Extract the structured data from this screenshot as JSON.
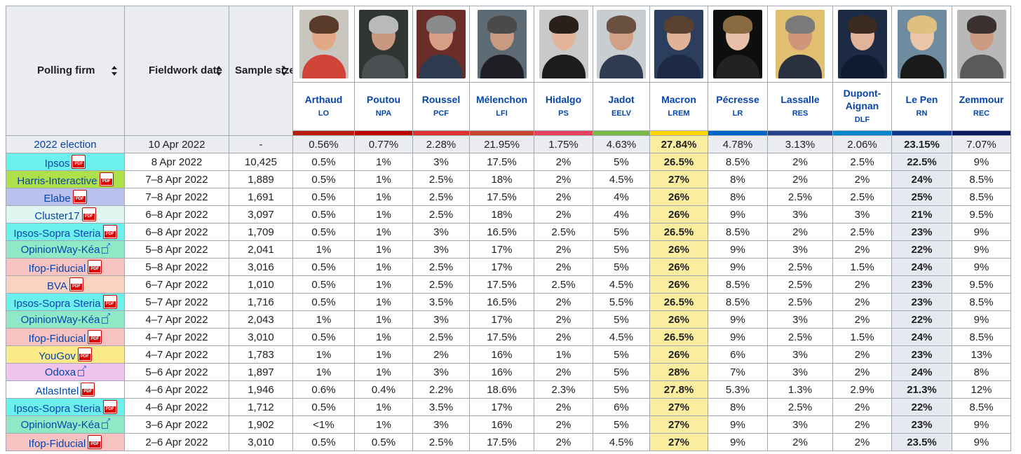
{
  "headers": {
    "firm": "Polling firm",
    "date": "Fieldwork date",
    "size": "Sample size"
  },
  "candidates": [
    {
      "name": "Arthaud",
      "party": "LO",
      "color": "#bb1e10",
      "photo": "photo-arthaud"
    },
    {
      "name": "Poutou",
      "party": "NPA",
      "color": "#bb0000",
      "photo": "photo-poutou"
    },
    {
      "name": "Roussel",
      "party": "PCF",
      "color": "#dd3333",
      "photo": "photo-roussel"
    },
    {
      "name": "Mélenchon",
      "party": "LFI",
      "color": "#c9462c",
      "photo": "photo-melenchon"
    },
    {
      "name": "Hidalgo",
      "party": "PS",
      "color": "#e4405f",
      "photo": "photo-hidalgo"
    },
    {
      "name": "Jadot",
      "party": "EELV",
      "color": "#78b943",
      "photo": "photo-jadot"
    },
    {
      "name": "Macron",
      "party": "LREM",
      "color": "#ffd600",
      "photo": "photo-macron"
    },
    {
      "name": "Pécresse",
      "party": "LR",
      "color": "#0066cc",
      "photo": "photo-pecresse"
    },
    {
      "name": "Lassalle",
      "party": "RES",
      "color": "#26428b",
      "photo": "photo-lassalle"
    },
    {
      "name": "Dupont-Aignan",
      "party": "DLF",
      "color": "#0087cd",
      "photo": "photo-dupont-aignan"
    },
    {
      "name": "Le Pen",
      "party": "RN",
      "color": "#0d378a",
      "photo": "photo-le-pen"
    },
    {
      "name": "Zemmour",
      "party": "REC",
      "color": "#0c1a62",
      "photo": "photo-zemmour"
    }
  ],
  "election": {
    "firm": "2022 election",
    "date": "10 Apr 2022",
    "size": "-",
    "values": [
      "0.56%",
      "0.77%",
      "2.28%",
      "21.95%",
      "1.75%",
      "4.63%",
      "27.84%",
      "4.78%",
      "3.13%",
      "2.06%",
      "23.15%",
      "7.07%"
    ]
  },
  "rows": [
    {
      "firm": "Ipsos",
      "color": "#6cf0ee",
      "icon": "pdf-icon",
      "date": "8 Apr 2022",
      "size": "10,425",
      "values": [
        "0.5%",
        "1%",
        "3%",
        "17.5%",
        "2%",
        "5%",
        "26.5%",
        "8.5%",
        "2%",
        "2.5%",
        "22.5%",
        "9%"
      ]
    },
    {
      "firm": "Harris-Interactive",
      "color": "#aee04c",
      "icon": "pdf-icon",
      "date": "7–8 Apr 2022",
      "size": "1,889",
      "values": [
        "0.5%",
        "1%",
        "2.5%",
        "18%",
        "2%",
        "4.5%",
        "27%",
        "8%",
        "2%",
        "2%",
        "24%",
        "8.5%"
      ]
    },
    {
      "firm": "Elabe",
      "color": "#b9c1ec",
      "icon": "pdf-icon",
      "date": "7–8 Apr 2022",
      "size": "1,691",
      "values": [
        "0.5%",
        "1%",
        "2.5%",
        "17.5%",
        "2%",
        "4%",
        "26%",
        "8%",
        "2.5%",
        "2.5%",
        "25%",
        "8.5%"
      ]
    },
    {
      "firm": "Cluster17",
      "color": "#e0f7f1",
      "icon": "pdf-icon",
      "date": "6–8 Apr 2022",
      "size": "3,097",
      "values": [
        "0.5%",
        "1%",
        "2.5%",
        "18%",
        "2%",
        "4%",
        "26%",
        "9%",
        "3%",
        "3%",
        "21%",
        "9.5%"
      ]
    },
    {
      "firm": "Ipsos-Sopra Steria",
      "color": "#6cf0ee",
      "icon": "pdf-icon",
      "date": "6–8 Apr 2022",
      "size": "1,709",
      "values": [
        "0.5%",
        "1%",
        "3%",
        "16.5%",
        "2.5%",
        "5%",
        "26.5%",
        "8.5%",
        "2%",
        "2.5%",
        "23%",
        "9%"
      ]
    },
    {
      "firm": "OpinionWay-Kéa",
      "color": "#8fe9c6",
      "icon": "external-link-icon",
      "date": "5–8 Apr 2022",
      "size": "2,041",
      "values": [
        "1%",
        "1%",
        "3%",
        "17%",
        "2%",
        "5%",
        "26%",
        "9%",
        "3%",
        "2%",
        "22%",
        "9%"
      ]
    },
    {
      "firm": "Ifop-Fiducial",
      "color": "#f7c3c0",
      "icon": "pdf-icon",
      "date": "5–8 Apr 2022",
      "size": "3,016",
      "values": [
        "0.5%",
        "1%",
        "2.5%",
        "17%",
        "2%",
        "5%",
        "26%",
        "9%",
        "2.5%",
        "1.5%",
        "24%",
        "9%"
      ]
    },
    {
      "firm": "BVA",
      "color": "#fbd2c1",
      "icon": "pdf-icon",
      "date": "6–7 Apr 2022",
      "size": "1,010",
      "values": [
        "0.5%",
        "1%",
        "2.5%",
        "17.5%",
        "2.5%",
        "4.5%",
        "26%",
        "8.5%",
        "2.5%",
        "2%",
        "23%",
        "9.5%"
      ]
    },
    {
      "firm": "Ipsos-Sopra Steria",
      "color": "#6cf0ee",
      "icon": "pdf-icon",
      "date": "5–7 Apr 2022",
      "size": "1,716",
      "values": [
        "0.5%",
        "1%",
        "3.5%",
        "16.5%",
        "2%",
        "5.5%",
        "26.5%",
        "8.5%",
        "2.5%",
        "2%",
        "23%",
        "8.5%"
      ]
    },
    {
      "firm": "OpinionWay-Kéa",
      "color": "#8fe9c6",
      "icon": "external-link-icon",
      "date": "4–7 Apr 2022",
      "size": "2,043",
      "values": [
        "1%",
        "1%",
        "3%",
        "17%",
        "2%",
        "5%",
        "26%",
        "9%",
        "3%",
        "2%",
        "22%",
        "9%"
      ]
    },
    {
      "firm": "Ifop-Fiducial",
      "color": "#f7c3c0",
      "icon": "pdf-icon",
      "date": "4–7 Apr 2022",
      "size": "3,010",
      "values": [
        "0.5%",
        "1%",
        "2.5%",
        "17.5%",
        "2%",
        "4.5%",
        "26.5%",
        "9%",
        "2.5%",
        "1.5%",
        "24%",
        "8.5%"
      ]
    },
    {
      "firm": "YouGov",
      "color": "#fcea88",
      "icon": "pdf-icon",
      "date": "4–7 Apr 2022",
      "size": "1,783",
      "values": [
        "1%",
        "1%",
        "2%",
        "16%",
        "1%",
        "5%",
        "26%",
        "6%",
        "3%",
        "2%",
        "23%",
        "13%"
      ]
    },
    {
      "firm": "Odoxa",
      "color": "#efc3ec",
      "icon": "external-link-icon",
      "date": "5–6 Apr 2022",
      "size": "1,897",
      "values": [
        "1%",
        "1%",
        "3%",
        "16%",
        "2%",
        "5%",
        "28%",
        "7%",
        "3%",
        "2%",
        "24%",
        "8%"
      ]
    },
    {
      "firm": "AtlasIntel",
      "color": "#ffffff",
      "icon": "pdf-icon",
      "date": "4–6 Apr 2022",
      "size": "1,946",
      "values": [
        "0.6%",
        "0.4%",
        "2.2%",
        "18.6%",
        "2.3%",
        "5%",
        "27.8%",
        "5.3%",
        "1.3%",
        "2.9%",
        "21.3%",
        "12%"
      ]
    },
    {
      "firm": "Ipsos-Sopra Steria",
      "color": "#6cf0ee",
      "icon": "pdf-icon",
      "date": "4–6 Apr 2022",
      "size": "1,712",
      "values": [
        "0.5%",
        "1%",
        "3.5%",
        "17%",
        "2%",
        "6%",
        "27%",
        "8%",
        "2.5%",
        "2%",
        "22%",
        "8.5%"
      ]
    },
    {
      "firm": "OpinionWay-Kéa",
      "color": "#8fe9c6",
      "icon": "external-link-icon",
      "date": "3–6 Apr 2022",
      "size": "1,902",
      "values": [
        "<1%",
        "1%",
        "3%",
        "16%",
        "2%",
        "5%",
        "27%",
        "9%",
        "3%",
        "2%",
        "23%",
        "9%"
      ]
    },
    {
      "firm": "Ifop-Fiducial",
      "color": "#f7c3c0",
      "icon": "pdf-icon",
      "date": "2–6 Apr 2022",
      "size": "3,010",
      "values": [
        "0.5%",
        "0.5%",
        "2.5%",
        "17.5%",
        "2%",
        "4.5%",
        "27%",
        "9%",
        "2%",
        "2%",
        "23.5%",
        "9%"
      ]
    }
  ]
}
